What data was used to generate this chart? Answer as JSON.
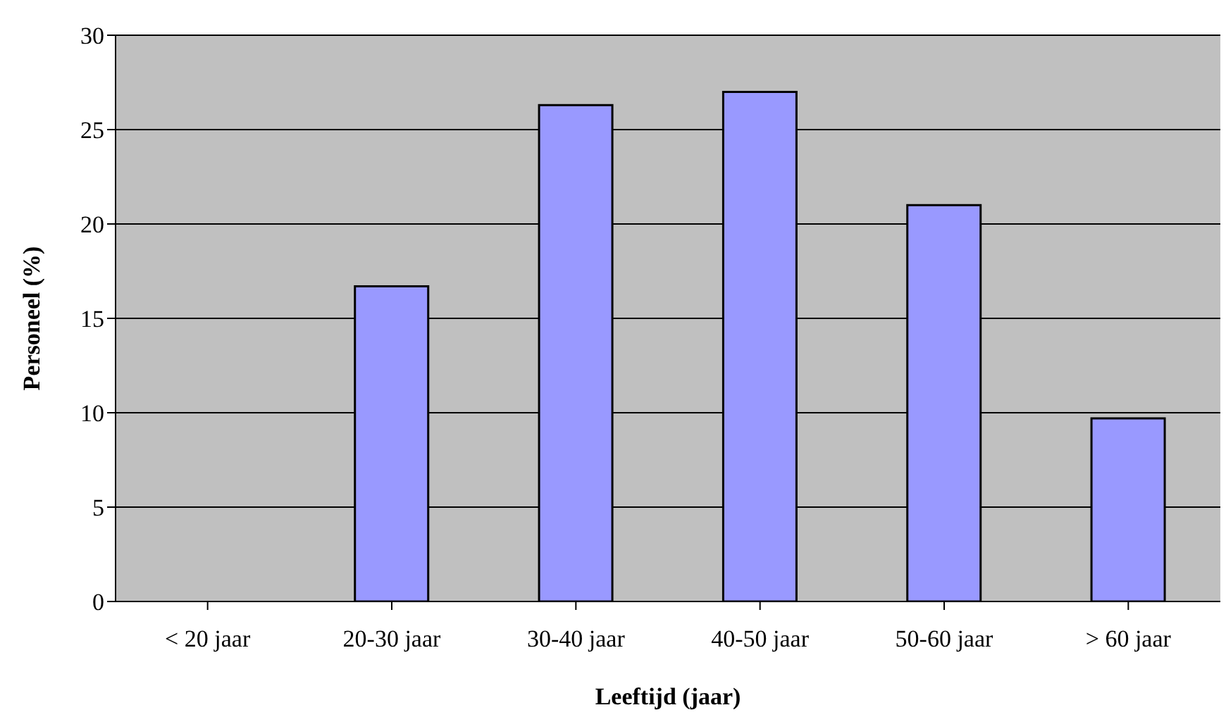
{
  "chart_data": {
    "type": "bar",
    "xlabel": "Leeftijd (jaar)",
    "ylabel": "Personeel (%)",
    "categories": [
      "< 20 jaar",
      "20-30 jaar",
      "30-40 jaar",
      "40-50 jaar",
      "50-60 jaar",
      "> 60 jaar"
    ],
    "values": [
      0,
      16.7,
      26.3,
      27.0,
      21.0,
      9.7
    ],
    "color": "#9999ff",
    "ylim": [
      0,
      30
    ],
    "yticks": [
      0,
      5,
      10,
      15,
      20,
      25,
      30
    ],
    "grid": "y"
  }
}
